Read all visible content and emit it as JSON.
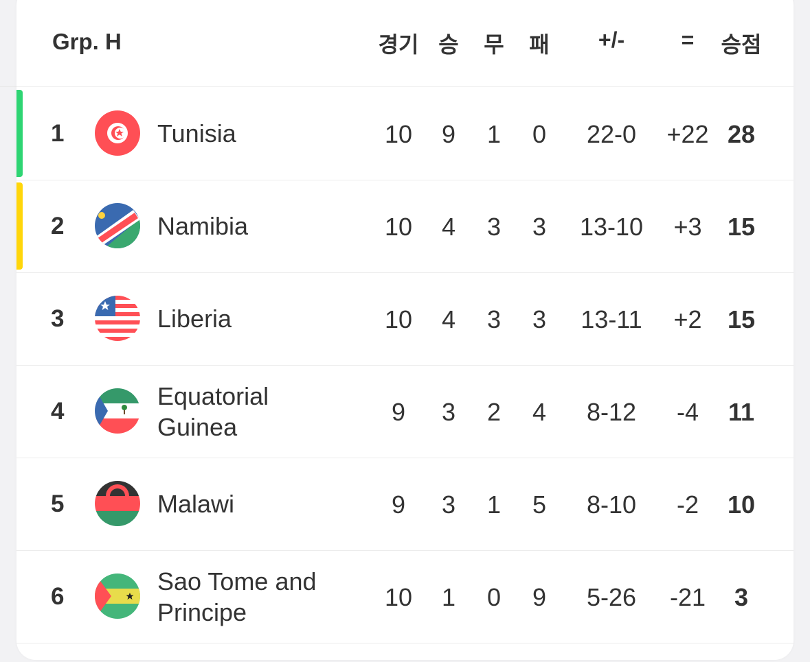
{
  "header": {
    "group": "Grp. H",
    "played": "경기",
    "won": "승",
    "drawn": "무",
    "lost": "패",
    "goals": "+/-",
    "diff": "=",
    "points": "승점"
  },
  "zone_colors": {
    "qualify": "#2ed573",
    "playoff": "#ffd60a"
  },
  "rows": [
    {
      "pos": "1",
      "team": "Tunisia",
      "flag": "tunisia-flag-icon",
      "zone": "qualify",
      "p": "10",
      "w": "9",
      "d": "1",
      "l": "0",
      "goals": "22-0",
      "diff": "+22",
      "pts": "28"
    },
    {
      "pos": "2",
      "team": "Namibia",
      "flag": "namibia-flag-icon",
      "zone": "playoff",
      "p": "10",
      "w": "4",
      "d": "3",
      "l": "3",
      "goals": "13-10",
      "diff": "+3",
      "pts": "15"
    },
    {
      "pos": "3",
      "team": "Liberia",
      "flag": "liberia-flag-icon",
      "p": "10",
      "w": "4",
      "d": "3",
      "l": "3",
      "goals": "13-11",
      "diff": "+2",
      "pts": "15"
    },
    {
      "pos": "4",
      "team": "Equatorial Guinea",
      "flag": "equatorial-guinea-flag-icon",
      "p": "9",
      "w": "3",
      "d": "2",
      "l": "4",
      "goals": "8-12",
      "diff": "-4",
      "pts": "11"
    },
    {
      "pos": "5",
      "team": "Malawi",
      "flag": "malawi-flag-icon",
      "p": "9",
      "w": "3",
      "d": "1",
      "l": "5",
      "goals": "8-10",
      "diff": "-2",
      "pts": "10"
    },
    {
      "pos": "6",
      "team": "Sao Tome and Principe",
      "flag": "sao-tome-flag-icon",
      "p": "10",
      "w": "1",
      "d": "0",
      "l": "9",
      "goals": "5-26",
      "diff": "-21",
      "pts": "3"
    }
  ]
}
